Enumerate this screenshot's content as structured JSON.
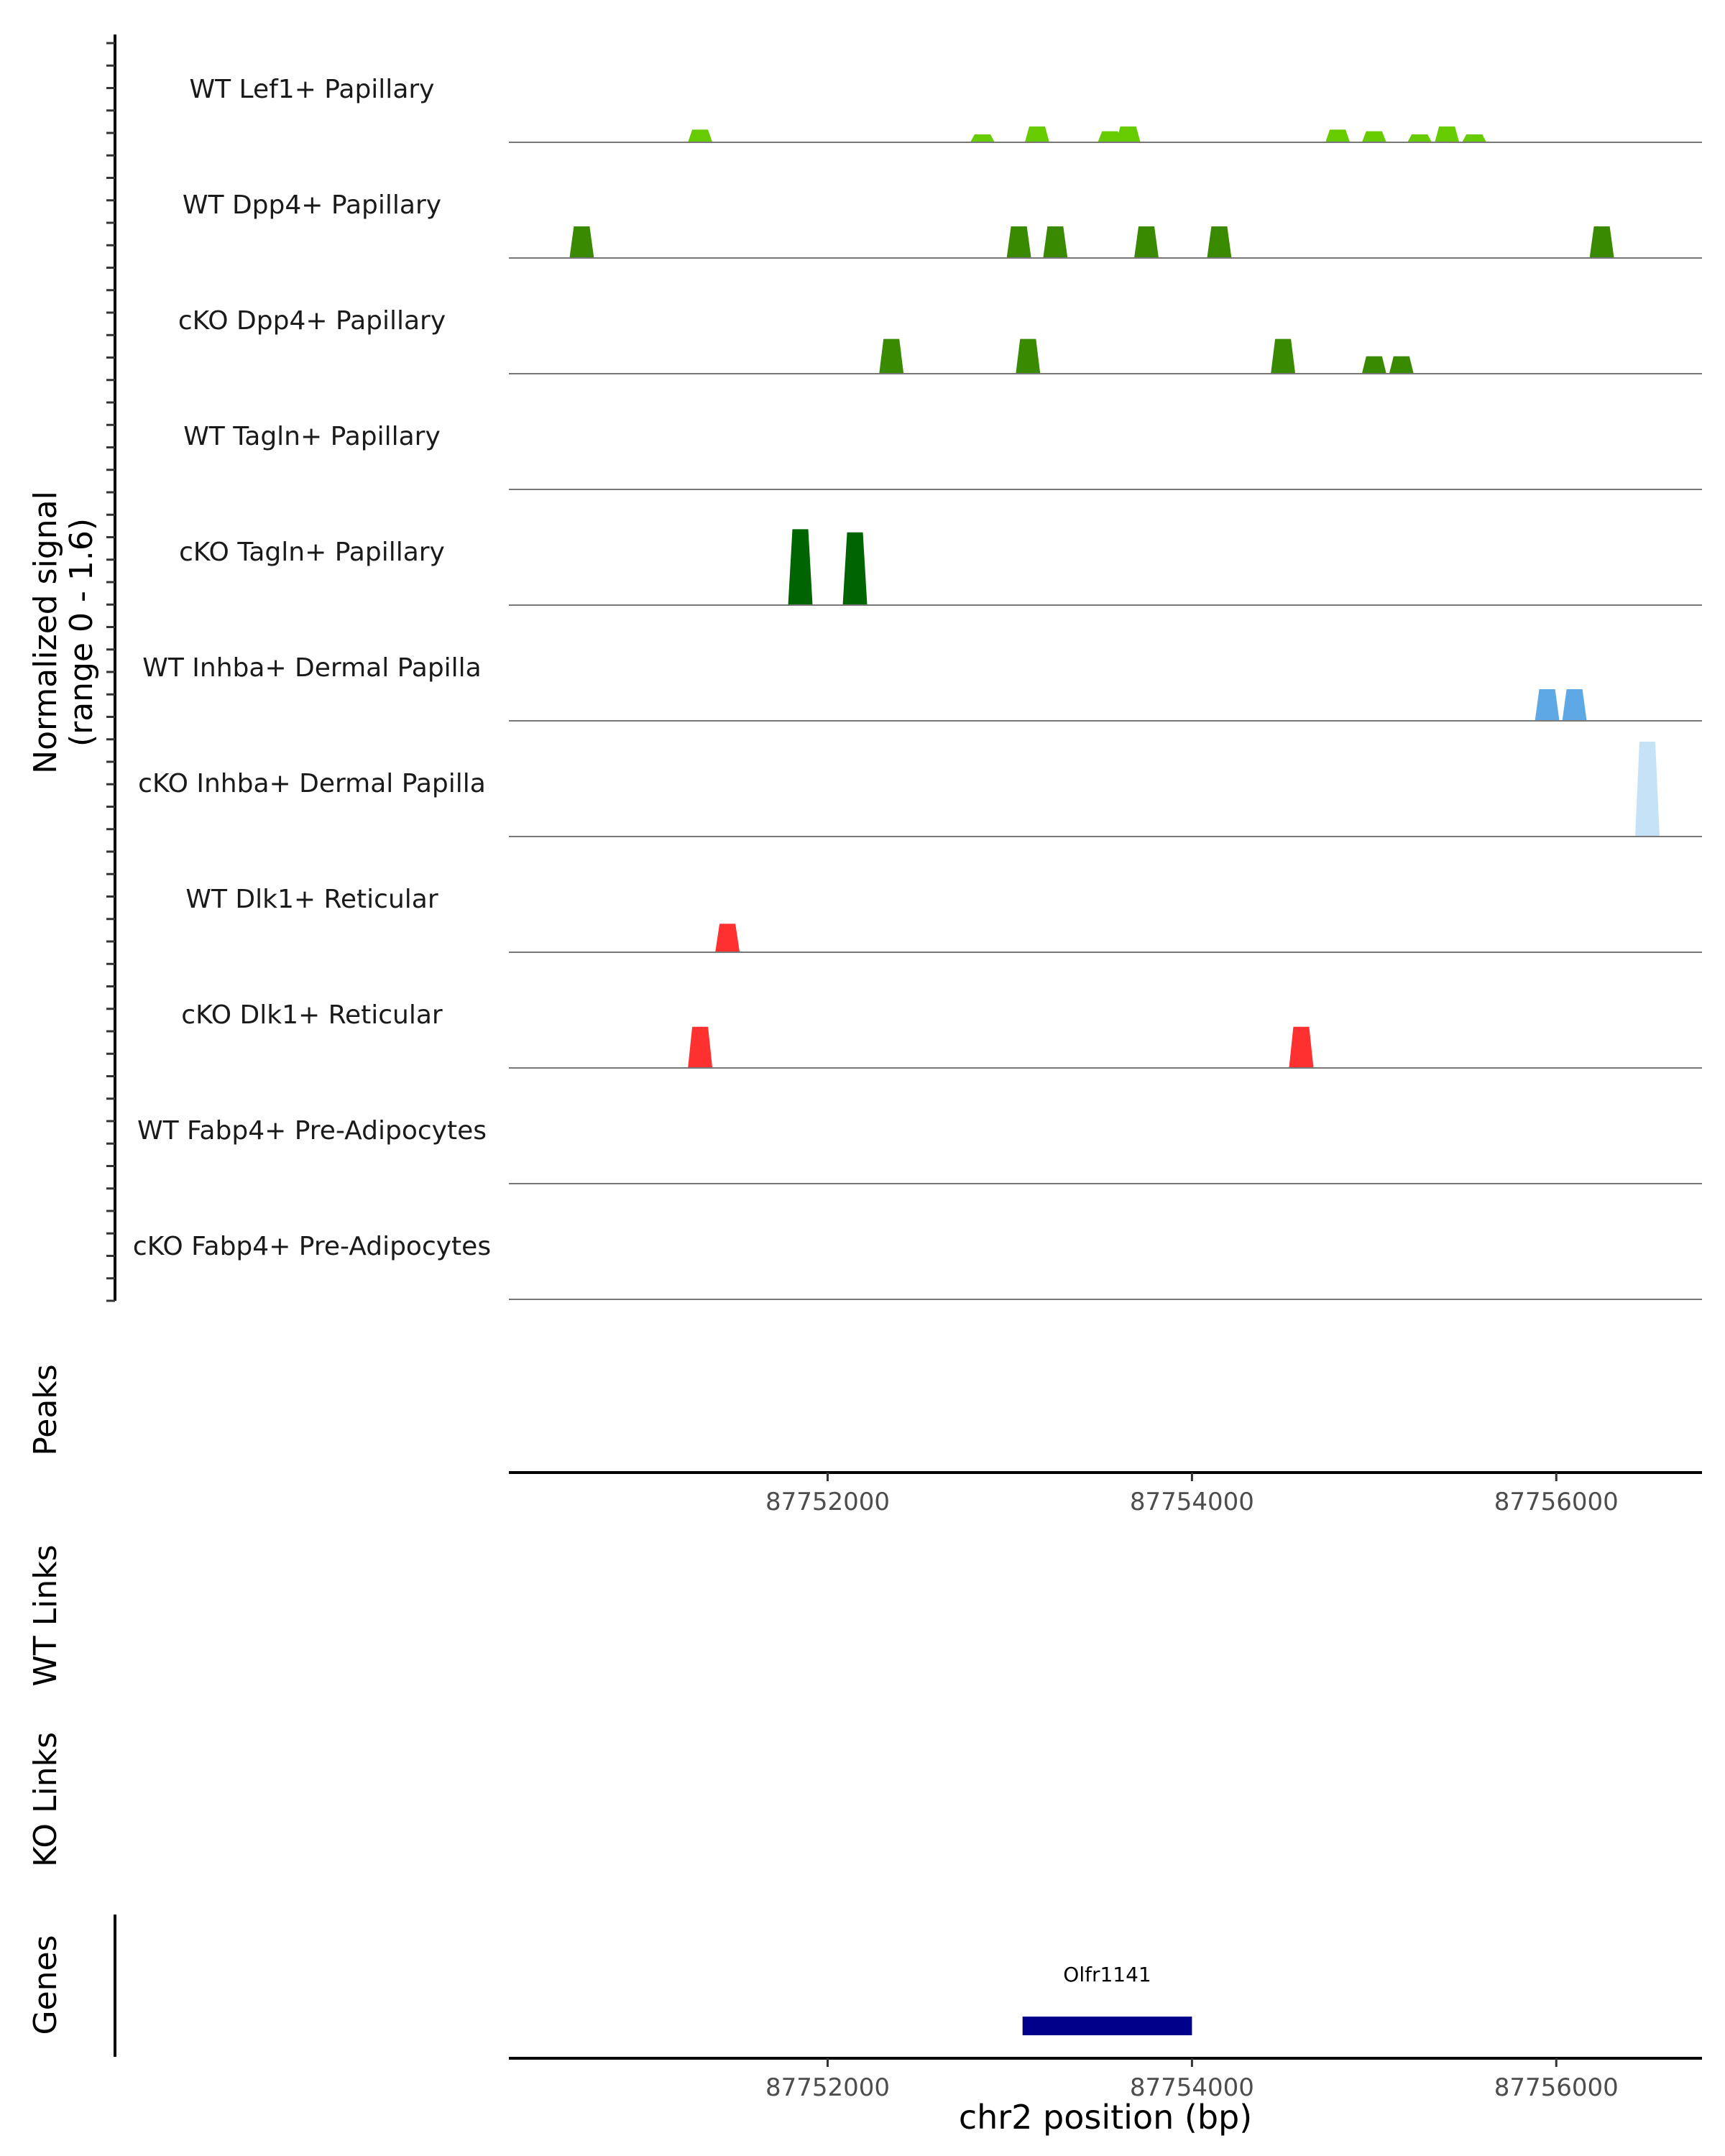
{
  "chart_data": {
    "type": "area",
    "title": "",
    "xlabel": "chr2 position (bp)",
    "x_range": [
      87750250,
      87756800
    ],
    "x_ticks": [
      87752000,
      87754000,
      87756000
    ],
    "x_tick_labels": [
      "87752000",
      "87754000",
      "87756000"
    ],
    "coverage": {
      "ylabel_line1": "Normalized signal",
      "ylabel_line2": "(range 0 - 1.6)",
      "ylim": [
        0,
        1.6
      ],
      "tracks": [
        {
          "name": "WT Lef1+ Papillary",
          "color": "#66cc00",
          "peaks": [
            [
              87751300,
              0.4
            ],
            [
              87752850,
              0.25
            ],
            [
              87753150,
              0.5
            ],
            [
              87753550,
              0.35
            ],
            [
              87753650,
              0.5
            ],
            [
              87754800,
              0.4
            ],
            [
              87755000,
              0.35
            ],
            [
              87755250,
              0.25
            ],
            [
              87755400,
              0.5
            ],
            [
              87755550,
              0.25
            ]
          ]
        },
        {
          "name": "WT Dpp4+ Papillary",
          "color": "#3a8a00",
          "peaks": [
            [
              87750650,
              1.0
            ],
            [
              87753050,
              1.0
            ],
            [
              87753250,
              1.0
            ],
            [
              87753750,
              1.0
            ],
            [
              87754150,
              1.0
            ],
            [
              87756250,
              1.0
            ]
          ]
        },
        {
          "name": "cKO Dpp4+ Papillary",
          "color": "#3a8a00",
          "peaks": [
            [
              87752350,
              1.1
            ],
            [
              87753100,
              1.1
            ],
            [
              87754500,
              1.1
            ],
            [
              87755000,
              0.55
            ],
            [
              87755150,
              0.55
            ]
          ]
        },
        {
          "name": "WT Tagln+ Papillary",
          "color": "#006400",
          "peaks": []
        },
        {
          "name": "cKO Tagln+ Papillary",
          "color": "#006400",
          "peaks": [
            [
              87751850,
              2.4
            ],
            [
              87752150,
              2.3
            ]
          ]
        },
        {
          "name": "WT Inhba+ Dermal Papilla",
          "color": "#5fa8e6",
          "peaks": [
            [
              87755950,
              1.0
            ],
            [
              87756100,
              1.0
            ]
          ]
        },
        {
          "name": "cKO Inhba+ Dermal Papilla",
          "color": "#c6e2f7",
          "peaks": [
            [
              87756500,
              3.0
            ]
          ]
        },
        {
          "name": "WT Dlk1+ Reticular",
          "color": "#ff3030",
          "peaks": [
            [
              87751450,
              0.9
            ]
          ]
        },
        {
          "name": "cKO Dlk1+ Reticular",
          "color": "#ff3030",
          "peaks": [
            [
              87751300,
              1.3
            ],
            [
              87754600,
              1.3
            ]
          ]
        },
        {
          "name": "WT Fabp4+ Pre-Adipocytes",
          "color": "#ff3030",
          "peaks": []
        },
        {
          "name": "cKO Fabp4+ Pre-Adipocytes",
          "color": "#ff3030",
          "peaks": []
        }
      ]
    },
    "peaks_track": {
      "label": "Peaks",
      "peaks": []
    },
    "wt_links": {
      "label": "WT Links",
      "links": []
    },
    "ko_links": {
      "label": "KO Links",
      "links": []
    },
    "genes_track": {
      "label": "Genes",
      "genes": [
        {
          "name": "Olfr1141",
          "start": 87753070,
          "end": 87754000,
          "color": "#00008b"
        }
      ]
    }
  }
}
